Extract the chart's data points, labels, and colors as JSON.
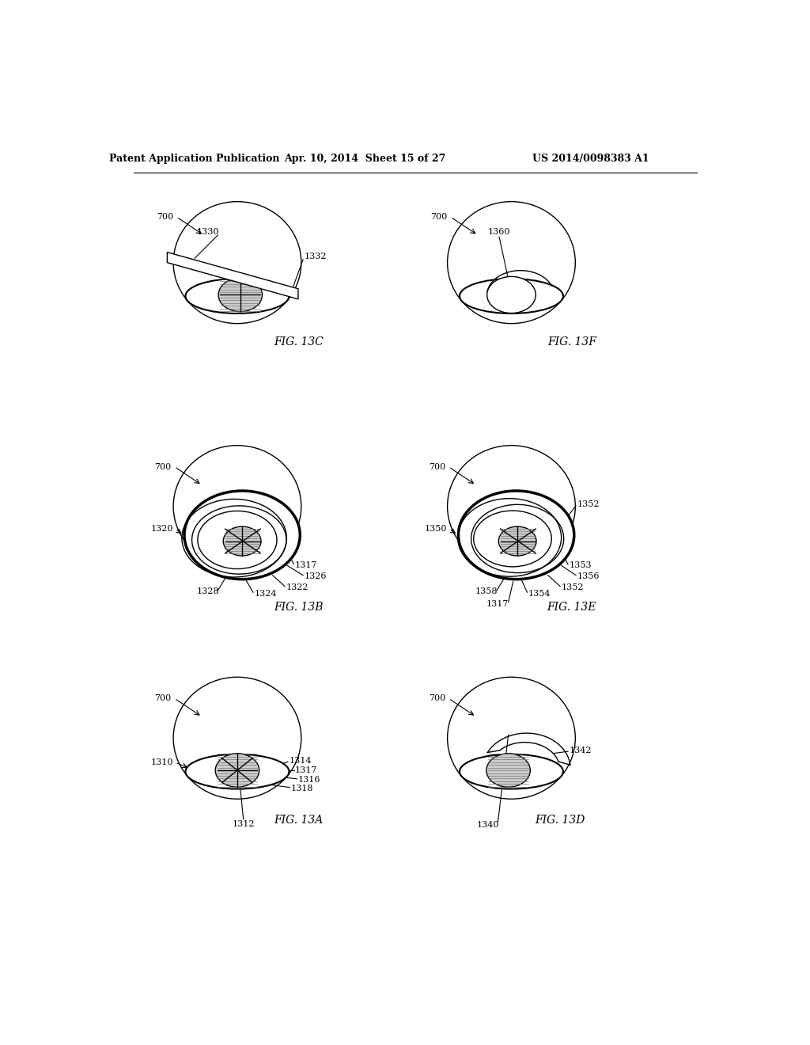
{
  "bg_color": "#ffffff",
  "header_left": "Patent Application Publication",
  "header_center": "Apr. 10, 2014  Sheet 15 of 27",
  "header_right": "US 2014/0098383 A1",
  "line_color": "#000000",
  "gray_fill": "#cccccc",
  "gray_dark": "#999999"
}
